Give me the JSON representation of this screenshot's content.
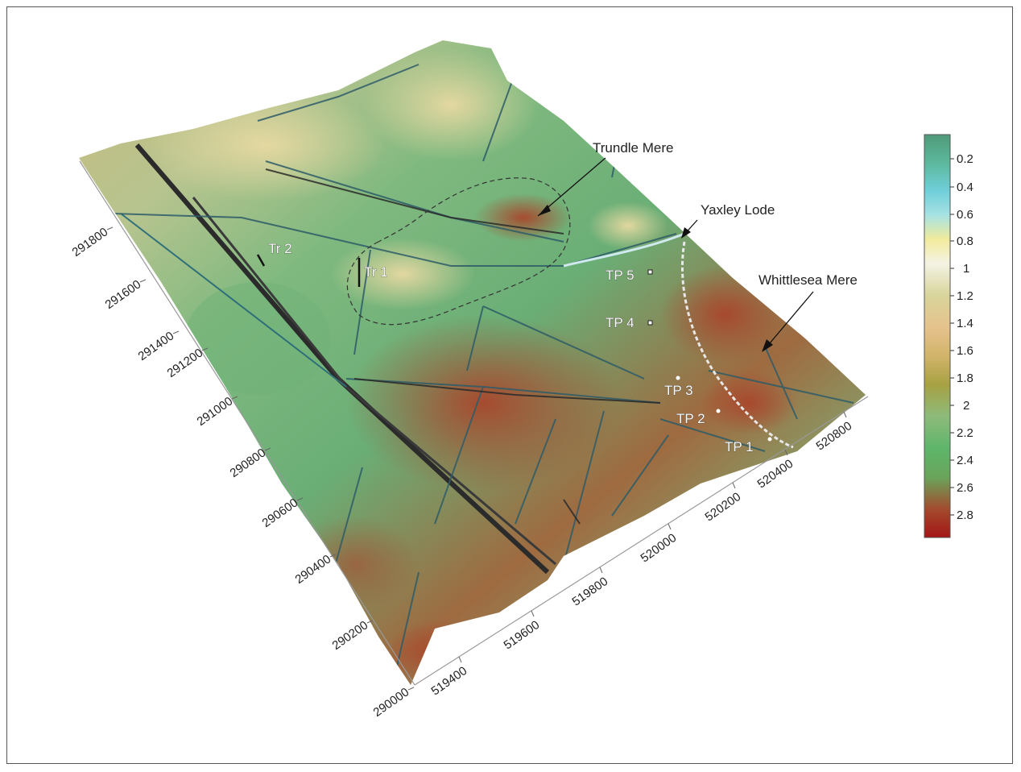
{
  "map": {
    "annotations": {
      "trundle_mere": "Trundle Mere",
      "yaxley_lode": "Yaxley Lode",
      "whittlesea_mere": "Whittlesea Mere"
    },
    "points": {
      "tp1": "TP 1",
      "tp2": "TP 2",
      "tp3": "TP 3",
      "tp4": "TP 4",
      "tp5": "TP 5",
      "tr1": "Tr 1",
      "tr2": "Tr 2"
    },
    "northing_ticks": [
      "291800",
      "291600",
      "291400",
      "291200",
      "291000",
      "290800",
      "290600",
      "290400",
      "290200",
      "290000"
    ],
    "easting_ticks": [
      "519400",
      "519600",
      "519800",
      "520000",
      "520200",
      "520400",
      "520800"
    ]
  },
  "colorbar": {
    "ticks": [
      "0.2",
      "0.4",
      "0.6",
      "0.8",
      "1",
      "1.2",
      "1.4",
      "1.6",
      "1.8",
      "2",
      "2.2",
      "2.4",
      "2.6",
      "2.8"
    ],
    "colors": [
      "#4f9a79",
      "#5cb89c",
      "#6fcfda",
      "#a7e2e2",
      "#f1eb9c",
      "#f4f3e4",
      "#d8d49a",
      "#e6c28c",
      "#d1b46a",
      "#a7a142",
      "#8dbb7b",
      "#5db56a",
      "#69a55b",
      "#a34a2d",
      "#a41616"
    ]
  }
}
